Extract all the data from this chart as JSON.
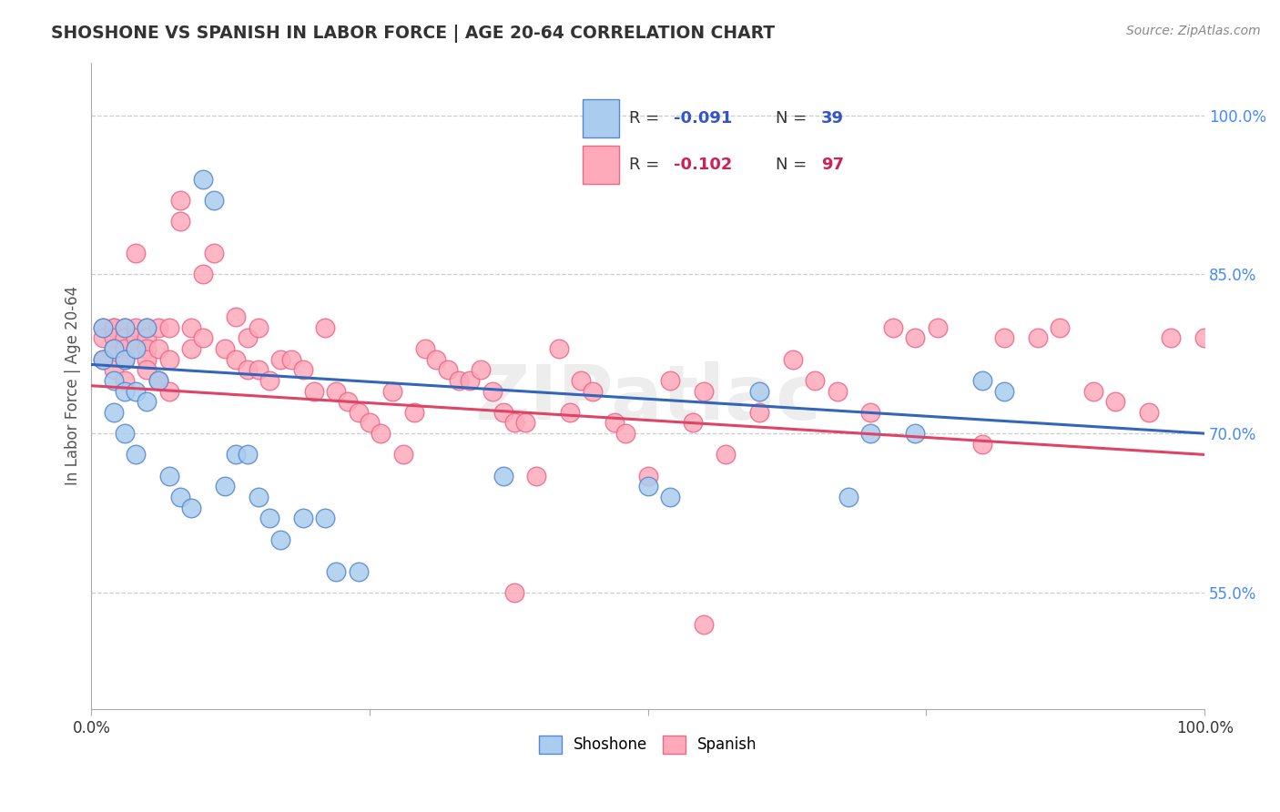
{
  "title": "SHOSHONE VS SPANISH IN LABOR FORCE | AGE 20-64 CORRELATION CHART",
  "source": "Source: ZipAtlas.com",
  "ylabel": "In Labor Force | Age 20-64",
  "xlim": [
    0.0,
    1.0
  ],
  "ylim": [
    0.44,
    1.05
  ],
  "y_tick_vals_right": [
    0.55,
    0.7,
    0.85,
    1.0
  ],
  "y_tick_labels_right": [
    "55.0%",
    "70.0%",
    "85.0%",
    "100.0%"
  ],
  "blue_color": "#AACCEE",
  "pink_color": "#FFAABB",
  "blue_edge_color": "#5588CC",
  "pink_edge_color": "#EE6688",
  "blue_line_color": "#3366BB",
  "pink_line_color": "#DD4466",
  "background_color": "#FFFFFF",
  "grid_color": "#CCCCCC",
  "title_color": "#333333",
  "axis_label_color": "#555555",
  "right_tick_color": "#4488FF",
  "watermark": "ZIPatlас",
  "shoshone_x": [
    0.01,
    0.01,
    0.02,
    0.02,
    0.02,
    0.03,
    0.03,
    0.03,
    0.03,
    0.04,
    0.04,
    0.04,
    0.05,
    0.05,
    0.06,
    0.07,
    0.08,
    0.09,
    0.1,
    0.11,
    0.12,
    0.13,
    0.14,
    0.15,
    0.16,
    0.17,
    0.19,
    0.21,
    0.22,
    0.24,
    0.37,
    0.5,
    0.52,
    0.6,
    0.68,
    0.7,
    0.74,
    0.8,
    0.82
  ],
  "shoshone_y": [
    0.8,
    0.77,
    0.78,
    0.75,
    0.72,
    0.8,
    0.77,
    0.74,
    0.7,
    0.78,
    0.74,
    0.68,
    0.8,
    0.73,
    0.75,
    0.66,
    0.64,
    0.63,
    0.94,
    0.92,
    0.65,
    0.68,
    0.68,
    0.64,
    0.62,
    0.6,
    0.62,
    0.62,
    0.57,
    0.57,
    0.66,
    0.65,
    0.64,
    0.74,
    0.64,
    0.7,
    0.7,
    0.75,
    0.74
  ],
  "spanish_x": [
    0.01,
    0.01,
    0.01,
    0.02,
    0.02,
    0.02,
    0.02,
    0.02,
    0.03,
    0.03,
    0.03,
    0.03,
    0.03,
    0.04,
    0.04,
    0.04,
    0.04,
    0.05,
    0.05,
    0.05,
    0.05,
    0.05,
    0.06,
    0.06,
    0.06,
    0.07,
    0.07,
    0.07,
    0.08,
    0.08,
    0.09,
    0.09,
    0.1,
    0.1,
    0.11,
    0.12,
    0.13,
    0.13,
    0.14,
    0.14,
    0.15,
    0.15,
    0.16,
    0.17,
    0.18,
    0.19,
    0.2,
    0.21,
    0.22,
    0.23,
    0.24,
    0.25,
    0.26,
    0.27,
    0.28,
    0.29,
    0.3,
    0.31,
    0.32,
    0.33,
    0.34,
    0.35,
    0.36,
    0.37,
    0.38,
    0.39,
    0.4,
    0.42,
    0.43,
    0.44,
    0.45,
    0.47,
    0.48,
    0.5,
    0.52,
    0.54,
    0.55,
    0.57,
    0.6,
    0.63,
    0.65,
    0.67,
    0.7,
    0.72,
    0.74,
    0.76,
    0.8,
    0.82,
    0.85,
    0.87,
    0.9,
    0.92,
    0.95,
    0.97,
    1.0,
    0.38,
    0.55
  ],
  "spanish_y": [
    0.8,
    0.79,
    0.77,
    0.8,
    0.8,
    0.79,
    0.78,
    0.76,
    0.8,
    0.79,
    0.78,
    0.77,
    0.75,
    0.8,
    0.79,
    0.78,
    0.87,
    0.8,
    0.79,
    0.78,
    0.77,
    0.76,
    0.8,
    0.78,
    0.75,
    0.8,
    0.77,
    0.74,
    0.92,
    0.9,
    0.8,
    0.78,
    0.85,
    0.79,
    0.87,
    0.78,
    0.77,
    0.81,
    0.79,
    0.76,
    0.8,
    0.76,
    0.75,
    0.77,
    0.77,
    0.76,
    0.74,
    0.8,
    0.74,
    0.73,
    0.72,
    0.71,
    0.7,
    0.74,
    0.68,
    0.72,
    0.78,
    0.77,
    0.76,
    0.75,
    0.75,
    0.76,
    0.74,
    0.72,
    0.71,
    0.71,
    0.66,
    0.78,
    0.72,
    0.75,
    0.74,
    0.71,
    0.7,
    0.66,
    0.75,
    0.71,
    0.74,
    0.68,
    0.72,
    0.77,
    0.75,
    0.74,
    0.72,
    0.8,
    0.79,
    0.8,
    0.69,
    0.79,
    0.79,
    0.8,
    0.74,
    0.73,
    0.72,
    0.79,
    0.79,
    0.55,
    0.52
  ],
  "blue_line_x0": 0.0,
  "blue_line_y0": 0.765,
  "blue_line_x1": 1.0,
  "blue_line_y1": 0.7,
  "pink_line_x0": 0.0,
  "pink_line_y0": 0.745,
  "pink_line_x1": 1.0,
  "pink_line_y1": 0.68
}
